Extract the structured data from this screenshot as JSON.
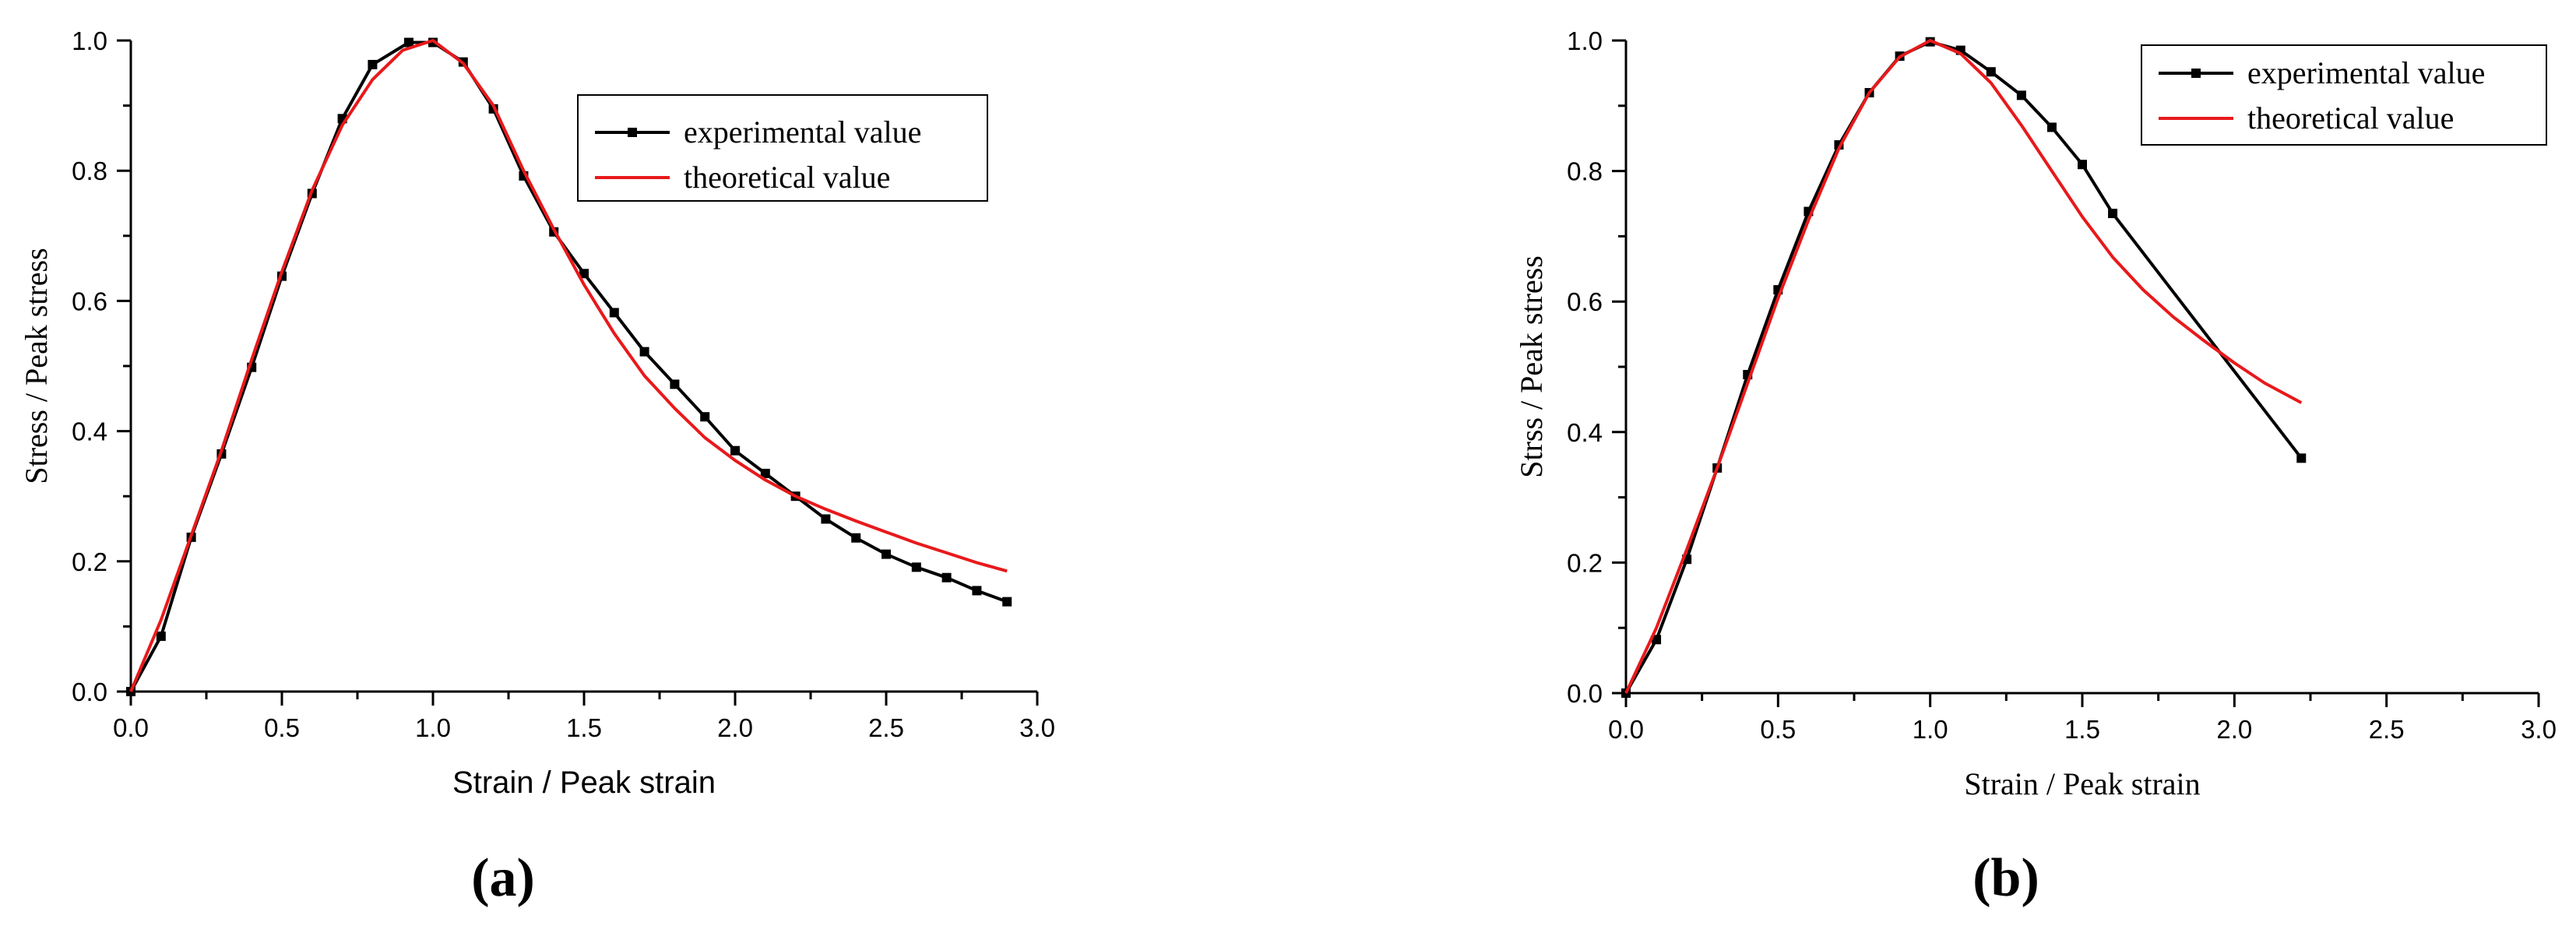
{
  "chart_data": [
    {
      "type": "line",
      "panel_label": "(a)",
      "title": "",
      "xlabel": "Strain / Peak strain",
      "ylabel": "Stress / Peak stress",
      "xlim": [
        0.0,
        3.0
      ],
      "ylim": [
        0.0,
        1.0
      ],
      "xticks": [
        "0.0",
        "0.5",
        "1.0",
        "1.5",
        "2.0",
        "2.5",
        "3.0"
      ],
      "yticks": [
        "0.0",
        "0.2",
        "0.4",
        "0.6",
        "0.8",
        "1.0"
      ],
      "grid": false,
      "legend_position": "top-right",
      "series": [
        {
          "name": "experimental value",
          "color": "#000000",
          "marker": "square",
          "x": [
            0.0,
            0.1,
            0.2,
            0.3,
            0.4,
            0.5,
            0.6,
            0.7,
            0.8,
            0.92,
            1.0,
            1.1,
            1.2,
            1.3,
            1.4,
            1.5,
            1.6,
            1.7,
            1.8,
            1.9,
            2.0,
            2.1,
            2.2,
            2.3,
            2.4,
            2.5,
            2.6,
            2.7,
            2.8,
            2.9
          ],
          "y": [
            0.0,
            0.085,
            0.237,
            0.365,
            0.498,
            0.638,
            0.765,
            0.88,
            0.963,
            0.997,
            0.997,
            0.967,
            0.895,
            0.792,
            0.706,
            0.642,
            0.582,
            0.522,
            0.472,
            0.422,
            0.37,
            0.335,
            0.3,
            0.265,
            0.236,
            0.211,
            0.191,
            0.175,
            0.155,
            0.138
          ]
        },
        {
          "name": "theoretical value",
          "color": "#e8191b",
          "marker": "none",
          "x": [
            0.0,
            0.1,
            0.2,
            0.3,
            0.4,
            0.5,
            0.6,
            0.7,
            0.8,
            0.9,
            1.0,
            1.1,
            1.2,
            1.3,
            1.4,
            1.5,
            1.6,
            1.7,
            1.8,
            1.9,
            2.0,
            2.1,
            2.2,
            2.3,
            2.4,
            2.5,
            2.6,
            2.7,
            2.8,
            2.9
          ],
          "y": [
            0.0,
            0.11,
            0.24,
            0.37,
            0.51,
            0.645,
            0.77,
            0.87,
            0.94,
            0.985,
            1.0,
            0.965,
            0.9,
            0.8,
            0.71,
            0.625,
            0.55,
            0.485,
            0.435,
            0.39,
            0.355,
            0.325,
            0.3,
            0.28,
            0.262,
            0.245,
            0.228,
            0.213,
            0.198,
            0.185
          ]
        }
      ]
    },
    {
      "type": "line",
      "panel_label": "(b)",
      "title": "",
      "xlabel": "Strain / Peak strain",
      "ylabel": "Strss / Peak stress",
      "xlim": [
        0.0,
        3.0
      ],
      "ylim": [
        0.0,
        1.0
      ],
      "xticks": [
        "0.0",
        "0.5",
        "1.0",
        "1.5",
        "2.0",
        "2.5",
        "3.0"
      ],
      "yticks": [
        "0.0",
        "0.2",
        "0.4",
        "0.6",
        "0.8",
        "1.0"
      ],
      "grid": false,
      "legend_position": "top-right",
      "series": [
        {
          "name": "experimental value",
          "color": "#000000",
          "marker": "square",
          "x": [
            0.0,
            0.1,
            0.2,
            0.3,
            0.4,
            0.5,
            0.6,
            0.7,
            0.8,
            0.9,
            1.0,
            1.1,
            1.2,
            1.3,
            1.4,
            1.5,
            1.6,
            2.22
          ],
          "y": [
            0.0,
            0.082,
            0.205,
            0.345,
            0.488,
            0.618,
            0.738,
            0.84,
            0.92,
            0.976,
            0.998,
            0.985,
            0.952,
            0.916,
            0.867,
            0.81,
            0.735,
            0.36
          ]
        },
        {
          "name": "theoretical value",
          "color": "#e8191b",
          "marker": "none",
          "x": [
            0.0,
            0.1,
            0.2,
            0.3,
            0.4,
            0.5,
            0.6,
            0.7,
            0.8,
            0.9,
            1.0,
            1.1,
            1.2,
            1.3,
            1.4,
            1.5,
            1.6,
            1.7,
            1.8,
            1.9,
            2.0,
            2.1,
            2.22
          ],
          "y": [
            0.0,
            0.1,
            0.22,
            0.345,
            0.475,
            0.605,
            0.725,
            0.835,
            0.92,
            0.975,
            1.0,
            0.98,
            0.935,
            0.87,
            0.8,
            0.73,
            0.668,
            0.618,
            0.576,
            0.54,
            0.506,
            0.475,
            0.445
          ]
        }
      ]
    }
  ]
}
